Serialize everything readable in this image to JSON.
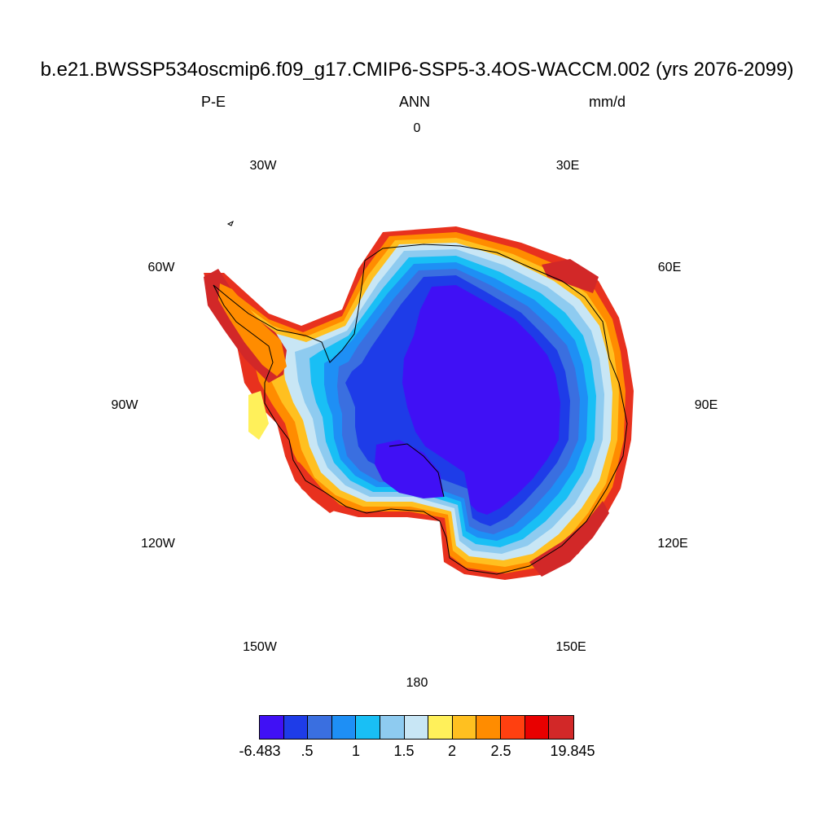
{
  "title": "b.e21.BWSSP534oscmip6.f09_g17.CMIP6-SSP5-3.4OS-WACCM.002 (yrs 2076-2099)",
  "left_label": "P-E",
  "center_label": "ANN",
  "right_label": "mm/d",
  "longitude_labels": {
    "l0": "0",
    "l30e": "30E",
    "l60e": "60E",
    "l90e": "90E",
    "l120e": "120E",
    "l150e": "150E",
    "l180": "180",
    "l150w": "150W",
    "l120w": "120W",
    "l90w": "90W",
    "l60w": "60W",
    "l30w": "30W"
  },
  "colorbar": {
    "colors": [
      "#4010f5",
      "#1e3ce8",
      "#3a6fe0",
      "#1e8ff5",
      "#19bff5",
      "#8ecbf0",
      "#c8e6f5",
      "#fff05a",
      "#ffc020",
      "#ff8c00",
      "#ff4010",
      "#e80000",
      "#d22828"
    ],
    "labels": {
      "min": "-6.483",
      "t1": ".5",
      "t2": "1",
      "t3": "1.5",
      "t4": "2",
      "t5": "2.5",
      "max": "19.845"
    }
  },
  "chart_data": {
    "type": "heatmap",
    "projection": "south polar stereographic",
    "variable": "P-E",
    "season": "ANN",
    "units": "mm/d",
    "min": -6.483,
    "max": 19.845,
    "contour_levels_labeled": [
      0.5,
      1,
      1.5,
      2,
      2.5
    ],
    "years": "2076-2099",
    "pattern": "Strongly negative P-E over East Antarctic plateau interior (deep blue); values rise toward coast; coastal margins of Antarctic Peninsula, Wilkes Land and Amundsen Sea show highest values (orange-red)."
  }
}
